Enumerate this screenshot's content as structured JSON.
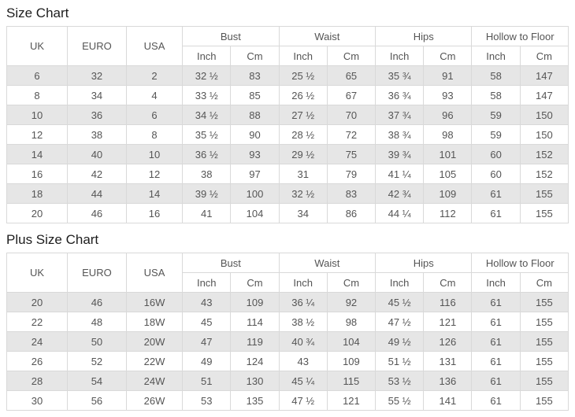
{
  "colors": {
    "row_stripe": "#e6e6e6",
    "table_border": "#d9d9d9",
    "cell_text": "#555555",
    "title_text": "#1d1d1d"
  },
  "charts": [
    {
      "title": "Size Chart",
      "columns": {
        "uk": "UK",
        "euro": "EURO",
        "usa": "USA"
      },
      "groups": [
        "Bust",
        "Waist",
        "Hips",
        "Hollow to Floor"
      ],
      "units": {
        "inch": "Inch",
        "cm": "Cm"
      },
      "rows": [
        [
          "6",
          "32",
          "2",
          "32 ½",
          "83",
          "25 ½",
          "65",
          "35 ¾",
          "91",
          "58",
          "147"
        ],
        [
          "8",
          "34",
          "4",
          "33 ½",
          "85",
          "26 ½",
          "67",
          "36 ¾",
          "93",
          "58",
          "147"
        ],
        [
          "10",
          "36",
          "6",
          "34 ½",
          "88",
          "27 ½",
          "70",
          "37 ¾",
          "96",
          "59",
          "150"
        ],
        [
          "12",
          "38",
          "8",
          "35 ½",
          "90",
          "28 ½",
          "72",
          "38 ¾",
          "98",
          "59",
          "150"
        ],
        [
          "14",
          "40",
          "10",
          "36 ½",
          "93",
          "29 ½",
          "75",
          "39 ¾",
          "101",
          "60",
          "152"
        ],
        [
          "16",
          "42",
          "12",
          "38",
          "97",
          "31",
          "79",
          "41 ¼",
          "105",
          "60",
          "152"
        ],
        [
          "18",
          "44",
          "14",
          "39 ½",
          "100",
          "32 ½",
          "83",
          "42 ¾",
          "109",
          "61",
          "155"
        ],
        [
          "20",
          "46",
          "16",
          "41",
          "104",
          "34",
          "86",
          "44 ¼",
          "112",
          "61",
          "155"
        ]
      ]
    },
    {
      "title": "Plus Size Chart",
      "columns": {
        "uk": "UK",
        "euro": "EURO",
        "usa": "USA"
      },
      "groups": [
        "Bust",
        "Waist",
        "Hips",
        "Hollow to Floor"
      ],
      "units": {
        "inch": "Inch",
        "cm": "Cm"
      },
      "rows": [
        [
          "20",
          "46",
          "16W",
          "43",
          "109",
          "36 ¼",
          "92",
          "45 ½",
          "116",
          "61",
          "155"
        ],
        [
          "22",
          "48",
          "18W",
          "45",
          "114",
          "38 ½",
          "98",
          "47 ½",
          "121",
          "61",
          "155"
        ],
        [
          "24",
          "50",
          "20W",
          "47",
          "119",
          "40 ¾",
          "104",
          "49 ½",
          "126",
          "61",
          "155"
        ],
        [
          "26",
          "52",
          "22W",
          "49",
          "124",
          "43",
          "109",
          "51 ½",
          "131",
          "61",
          "155"
        ],
        [
          "28",
          "54",
          "24W",
          "51",
          "130",
          "45 ¼",
          "115",
          "53 ½",
          "136",
          "61",
          "155"
        ],
        [
          "30",
          "56",
          "26W",
          "53",
          "135",
          "47 ½",
          "121",
          "55 ½",
          "141",
          "61",
          "155"
        ]
      ]
    }
  ]
}
